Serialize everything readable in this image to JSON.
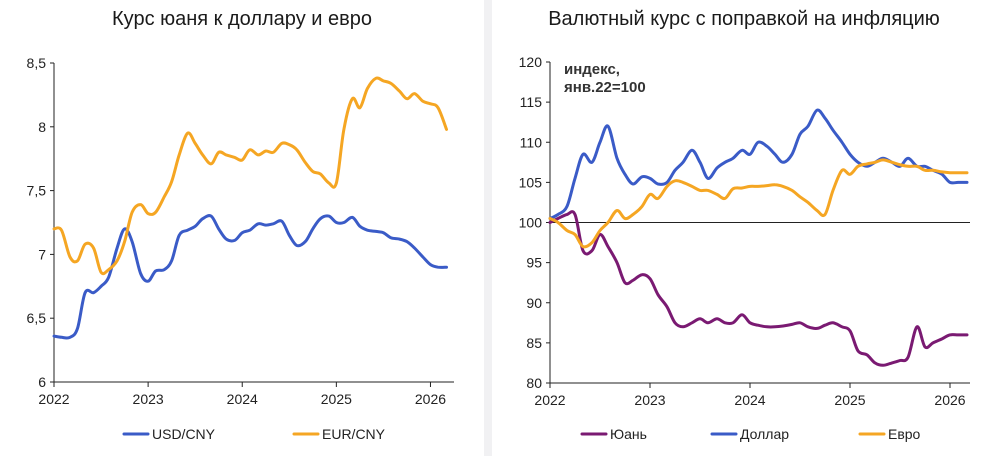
{
  "colors": {
    "usd": "#3a5bc7",
    "eur": "#f5a623",
    "cny": "#7a1a72"
  },
  "chart_data": [
    {
      "type": "line",
      "title": "Курс юаня к доллару и евро",
      "x_ticks": [
        "2022",
        "2023",
        "2024",
        "2025",
        "2026"
      ],
      "y_ticks": [
        "6",
        "6,5",
        "7",
        "7,5",
        "8",
        "8,5"
      ],
      "ylim": [
        6,
        8.5
      ],
      "xlim": [
        2022.0,
        2026.25
      ],
      "legend_position": "bottom",
      "series": [
        {
          "name": "USD/CNY",
          "color_key": "usd",
          "x": [
            2022.0,
            2022.08,
            2022.17,
            2022.25,
            2022.33,
            2022.42,
            2022.5,
            2022.58,
            2022.67,
            2022.75,
            2022.83,
            2022.92,
            2023.0,
            2023.08,
            2023.17,
            2023.25,
            2023.33,
            2023.42,
            2023.5,
            2023.58,
            2023.67,
            2023.75,
            2023.83,
            2023.92,
            2024.0,
            2024.08,
            2024.17,
            2024.25,
            2024.33,
            2024.42,
            2024.5,
            2024.58,
            2024.67,
            2024.75,
            2024.83,
            2024.92,
            2025.0,
            2025.08,
            2025.17,
            2025.25,
            2025.33,
            2025.42,
            2025.5,
            2025.58,
            2025.67,
            2025.75,
            2025.83,
            2025.92,
            2026.0,
            2026.08,
            2026.17
          ],
          "values": [
            6.36,
            6.35,
            6.35,
            6.42,
            6.7,
            6.7,
            6.75,
            6.82,
            7.05,
            7.2,
            7.1,
            6.85,
            6.79,
            6.87,
            6.88,
            6.95,
            7.15,
            7.19,
            7.22,
            7.28,
            7.3,
            7.2,
            7.12,
            7.11,
            7.17,
            7.19,
            7.24,
            7.23,
            7.24,
            7.26,
            7.15,
            7.07,
            7.1,
            7.2,
            7.28,
            7.3,
            7.25,
            7.25,
            7.29,
            7.22,
            7.19,
            7.18,
            7.17,
            7.13,
            7.12,
            7.1,
            7.05,
            6.98,
            6.92,
            6.9,
            6.9
          ]
        },
        {
          "name": "EUR/CNY",
          "color_key": "eur",
          "x": [
            2022.0,
            2022.08,
            2022.17,
            2022.25,
            2022.33,
            2022.42,
            2022.5,
            2022.58,
            2022.67,
            2022.75,
            2022.83,
            2022.92,
            2023.0,
            2023.08,
            2023.17,
            2023.25,
            2023.33,
            2023.42,
            2023.5,
            2023.58,
            2023.67,
            2023.75,
            2023.83,
            2023.92,
            2024.0,
            2024.08,
            2024.17,
            2024.25,
            2024.33,
            2024.42,
            2024.5,
            2024.58,
            2024.67,
            2024.75,
            2024.83,
            2024.92,
            2025.0,
            2025.08,
            2025.17,
            2025.25,
            2025.33,
            2025.42,
            2025.5,
            2025.58,
            2025.67,
            2025.75,
            2025.83,
            2025.92,
            2026.0,
            2026.08,
            2026.17
          ],
          "values": [
            7.2,
            7.19,
            6.98,
            6.95,
            7.08,
            7.05,
            6.86,
            6.88,
            6.95,
            7.1,
            7.33,
            7.39,
            7.32,
            7.33,
            7.45,
            7.57,
            7.78,
            7.95,
            7.87,
            7.78,
            7.71,
            7.8,
            7.78,
            7.76,
            7.74,
            7.82,
            7.78,
            7.81,
            7.8,
            7.87,
            7.86,
            7.82,
            7.72,
            7.65,
            7.63,
            7.56,
            7.56,
            7.98,
            8.22,
            8.15,
            8.3,
            8.38,
            8.36,
            8.34,
            8.28,
            8.22,
            8.26,
            8.2,
            8.18,
            8.15,
            7.98
          ]
        }
      ]
    },
    {
      "type": "line",
      "title": "Валютный курс с поправкой на инфляцию",
      "annotation": [
        "индекс,",
        "янв.22=100"
      ],
      "x_ticks": [
        "2022",
        "2023",
        "2024",
        "2025",
        "2026"
      ],
      "y_ticks": [
        "80",
        "85",
        "90",
        "95",
        "100",
        "105",
        "110",
        "115",
        "120"
      ],
      "ylim": [
        80,
        120
      ],
      "xlim": [
        2022.0,
        2026.2
      ],
      "legend_position": "bottom",
      "series": [
        {
          "name": "Юань",
          "color_key": "cny",
          "x": [
            2022.0,
            2022.08,
            2022.17,
            2022.25,
            2022.33,
            2022.42,
            2022.5,
            2022.58,
            2022.67,
            2022.75,
            2022.83,
            2022.92,
            2023.0,
            2023.08,
            2023.17,
            2023.25,
            2023.33,
            2023.42,
            2023.5,
            2023.58,
            2023.67,
            2023.75,
            2023.83,
            2023.92,
            2024.0,
            2024.08,
            2024.17,
            2024.25,
            2024.33,
            2024.42,
            2024.5,
            2024.58,
            2024.67,
            2024.75,
            2024.83,
            2024.92,
            2025.0,
            2025.08,
            2025.17,
            2025.25,
            2025.33,
            2025.42,
            2025.5,
            2025.58,
            2025.67,
            2025.75,
            2025.83,
            2025.92,
            2026.0,
            2026.08,
            2026.17
          ],
          "values": [
            100,
            100.5,
            101,
            101,
            96.5,
            96.5,
            98.5,
            97,
            95,
            92.5,
            92.8,
            93.5,
            93,
            91,
            89.5,
            87.5,
            87,
            87.5,
            88,
            87.5,
            88,
            87.5,
            87.5,
            88.5,
            87.5,
            87.2,
            87,
            87,
            87.1,
            87.3,
            87.5,
            87,
            86.8,
            87.2,
            87.5,
            87,
            86.5,
            84,
            83.5,
            82.5,
            82.2,
            82.5,
            82.8,
            83.2,
            87,
            84.5,
            85,
            85.5,
            86,
            86,
            86
          ]
        },
        {
          "name": "Доллар",
          "color_key": "usd",
          "x": [
            2022.0,
            2022.08,
            2022.17,
            2022.25,
            2022.33,
            2022.42,
            2022.5,
            2022.58,
            2022.67,
            2022.75,
            2022.83,
            2022.92,
            2023.0,
            2023.08,
            2023.17,
            2023.25,
            2023.33,
            2023.42,
            2023.5,
            2023.58,
            2023.67,
            2023.75,
            2023.83,
            2023.92,
            2024.0,
            2024.08,
            2024.17,
            2024.25,
            2024.33,
            2024.42,
            2024.5,
            2024.58,
            2024.67,
            2024.75,
            2024.83,
            2024.92,
            2025.0,
            2025.08,
            2025.17,
            2025.25,
            2025.33,
            2025.42,
            2025.5,
            2025.58,
            2025.67,
            2025.75,
            2025.83,
            2025.92,
            2026.0,
            2026.08,
            2026.17
          ],
          "values": [
            100.5,
            101,
            102,
            105.5,
            108.5,
            107.5,
            110,
            112,
            108,
            106,
            104.8,
            105.7,
            105.5,
            104.8,
            105,
            106.5,
            107.5,
            109,
            107.5,
            105.5,
            106.8,
            107.5,
            108,
            109,
            108.5,
            110,
            109.5,
            108.5,
            107.5,
            108.5,
            111,
            112,
            114,
            113,
            111.5,
            110,
            108.5,
            107.5,
            107,
            107.5,
            108,
            107.5,
            107,
            108,
            107,
            107,
            106.5,
            106,
            105,
            105,
            105
          ]
        },
        {
          "name": "Евро",
          "color_key": "eur",
          "x": [
            2022.0,
            2022.08,
            2022.17,
            2022.25,
            2022.33,
            2022.42,
            2022.5,
            2022.58,
            2022.67,
            2022.75,
            2022.83,
            2022.92,
            2023.0,
            2023.08,
            2023.17,
            2023.25,
            2023.33,
            2023.42,
            2023.5,
            2023.58,
            2023.67,
            2023.75,
            2023.83,
            2023.92,
            2024.0,
            2024.08,
            2024.17,
            2024.25,
            2024.33,
            2024.42,
            2024.5,
            2024.58,
            2024.67,
            2024.75,
            2024.83,
            2024.92,
            2025.0,
            2025.08,
            2025.17,
            2025.25,
            2025.33,
            2025.42,
            2025.5,
            2025.58,
            2025.67,
            2025.75,
            2025.83,
            2025.92,
            2026.0,
            2026.08,
            2026.17
          ],
          "values": [
            100.5,
            100,
            99,
            98.5,
            97,
            97.5,
            99,
            100,
            101.5,
            100.5,
            101,
            102,
            103.5,
            103,
            104.5,
            105.2,
            105,
            104.5,
            104,
            104,
            103.5,
            103,
            104.2,
            104.3,
            104.5,
            104.5,
            104.6,
            104.7,
            104.5,
            104,
            103.2,
            102.5,
            101.5,
            101,
            104,
            106.5,
            106,
            107,
            107.3,
            107.5,
            107.8,
            107.5,
            107.2,
            107,
            107,
            106.5,
            106.5,
            106.3,
            106.2,
            106.2,
            106.2
          ]
        }
      ]
    }
  ]
}
